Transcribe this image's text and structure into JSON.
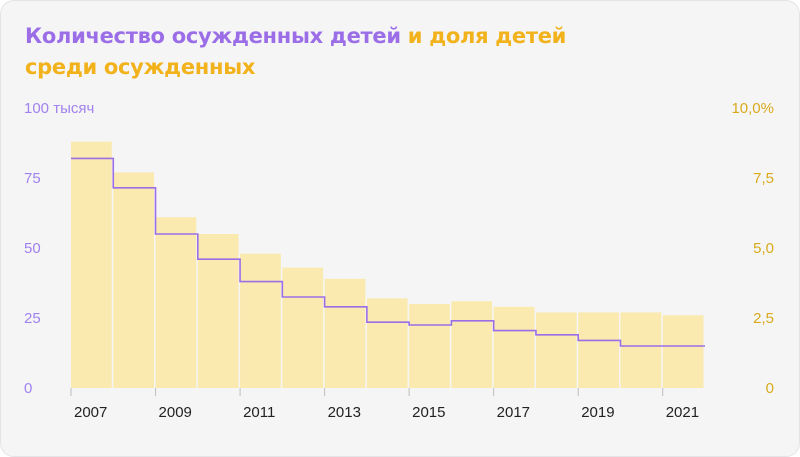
{
  "title": {
    "part1": "Количество осужденных детей",
    "part2": "и доля детей среди осужденных"
  },
  "colors": {
    "bars": "#faeab0",
    "bar_divider": "#ffffff",
    "line": "#9b6ee8",
    "title_count": "#9b6ee8",
    "title_share": "#f1b21b",
    "left_axis": "#a182ee",
    "right_axis": "#d9aa1b",
    "background": "#f5f5f6"
  },
  "chart_data": {
    "type": "bar",
    "years": [
      2007,
      2008,
      2009,
      2010,
      2011,
      2012,
      2013,
      2014,
      2015,
      2016,
      2017,
      2018,
      2019,
      2020,
      2021
    ],
    "x_tick_labels": [
      "2007",
      "2009",
      "2011",
      "2013",
      "2015",
      "2017",
      "2019",
      "2021"
    ],
    "left_axis": {
      "ylim": [
        0,
        100
      ],
      "tick_values": [
        0,
        25,
        50,
        75,
        100
      ],
      "tick_labels": [
        "0",
        "25",
        "50",
        "75",
        "100 тысяч"
      ]
    },
    "right_axis": {
      "ylim": [
        0,
        10
      ],
      "tick_values": [
        0,
        2.5,
        5,
        7.5,
        10
      ],
      "tick_labels": [
        "0",
        "2,5",
        "5,0",
        "7,5",
        "10,0%"
      ]
    },
    "series": [
      {
        "name": "Количество осужденных детей",
        "axis": "left",
        "render": "step-line",
        "unit": "тысяч",
        "values": [
          82,
          71.5,
          55,
          46,
          38,
          32.5,
          29,
          23.5,
          22.5,
          24,
          20.5,
          19,
          17,
          15,
          15
        ]
      },
      {
        "name": "доля детей среди осужденных",
        "axis": "right",
        "render": "bars",
        "unit": "%",
        "values": [
          8.8,
          7.7,
          6.1,
          5.5,
          4.8,
          4.3,
          3.9,
          3.2,
          3.0,
          3.1,
          2.9,
          2.7,
          2.7,
          2.7,
          2.6
        ]
      }
    ]
  }
}
